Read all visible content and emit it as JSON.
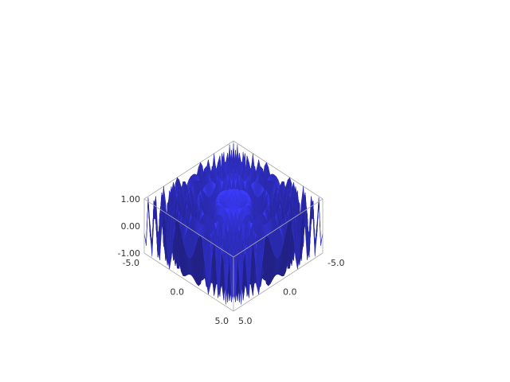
{
  "chart_data": {
    "type": "surface3d",
    "function": "sin(x^2 + y^2)",
    "x_ticks": [
      "-5.0",
      "0.0",
      "5.0"
    ],
    "y_ticks": [
      "-5.0",
      "0.0",
      "5.0"
    ],
    "z_ticks": [
      "-1.00",
      "0.00",
      "1.00"
    ],
    "xlim": [
      -5,
      5
    ],
    "ylim": [
      -5,
      5
    ],
    "zlim": [
      -1,
      1
    ],
    "colors": {
      "surface": "#4a4ae6",
      "surface_dark": "#2c2cae",
      "surface_light": "#6a6aff",
      "frame": "#aaaaaa"
    }
  }
}
